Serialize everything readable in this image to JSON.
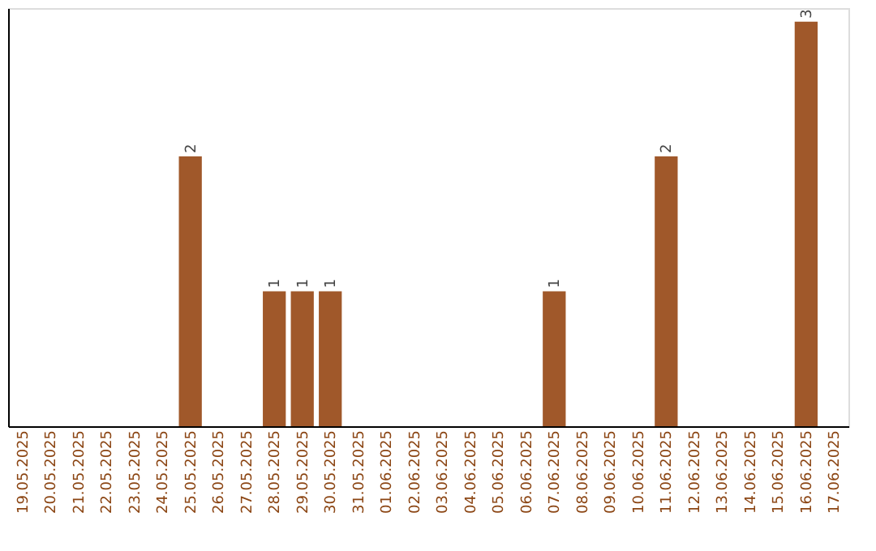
{
  "chart_data": {
    "type": "bar",
    "categories": [
      "19.05.2025",
      "20.05.2025",
      "21.05.2025",
      "22.05.2025",
      "23.05.2025",
      "24.05.2025",
      "25.05.2025",
      "26.05.2025",
      "27.05.2025",
      "28.05.2025",
      "29.05.2025",
      "30.05.2025",
      "31.05.2025",
      "01.06.2025",
      "02.06.2025",
      "03.06.2025",
      "04.06.2025",
      "05.06.2025",
      "06.06.2025",
      "07.06.2025",
      "08.06.2025",
      "09.06.2025",
      "10.06.2025",
      "11.06.2025",
      "12.06.2025",
      "13.06.2025",
      "14.06.2025",
      "15.06.2025",
      "16.06.2025",
      "17.06.2025"
    ],
    "values": [
      0,
      0,
      0,
      0,
      0,
      0,
      2,
      0,
      0,
      1,
      1,
      1,
      0,
      0,
      0,
      0,
      0,
      0,
      0,
      1,
      0,
      0,
      0,
      2,
      0,
      0,
      0,
      0,
      3,
      0
    ],
    "value_labels": [
      null,
      null,
      null,
      null,
      null,
      null,
      "2",
      null,
      null,
      "1",
      "1",
      "1",
      null,
      null,
      null,
      null,
      null,
      null,
      null,
      "1",
      null,
      null,
      null,
      "2",
      null,
      null,
      null,
      null,
      "3",
      null
    ],
    "color": "#a0582a",
    "ylim": [
      0,
      3.1
    ],
    "tick_labels": "x",
    "grid": false
  }
}
